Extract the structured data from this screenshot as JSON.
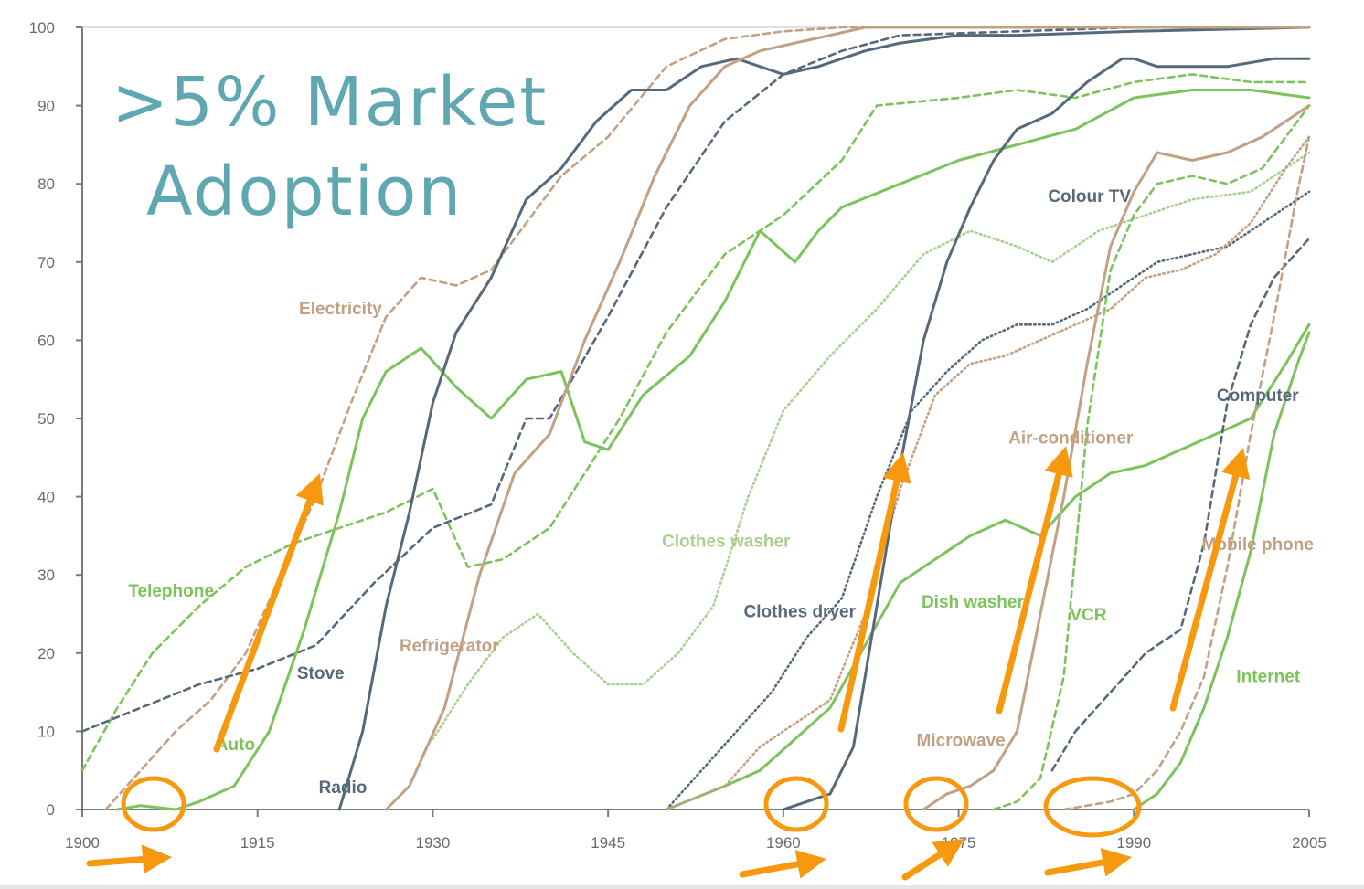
{
  "overlay": {
    "line1": ">5% Market",
    "line2": "Adoption"
  },
  "colors": {
    "grey": "#56697a",
    "tan": "#c2a083",
    "green": "#7cc35c",
    "lightgreen": "#a9d08d",
    "orange": "#f7990f",
    "overlay": "#5fa7b1"
  },
  "chart_data": {
    "type": "line",
    "xlim": [
      1900,
      2005
    ],
    "ylim": [
      0,
      100
    ],
    "xticks": [
      1900,
      1915,
      1930,
      1945,
      1960,
      1975,
      1990,
      2005
    ],
    "yticks": [
      0,
      10,
      20,
      30,
      40,
      50,
      60,
      70,
      80,
      90,
      100
    ],
    "grid": false,
    "series": [
      {
        "name": "Electricity",
        "color": "tan",
        "style": "dashed",
        "x": [
          1902,
          1905,
          1908,
          1911,
          1914,
          1917,
          1920,
          1923,
          1926,
          1929,
          1932,
          1935,
          1938,
          1941,
          1945,
          1950,
          1955,
          1960,
          1965,
          1980,
          2005
        ],
        "y": [
          0,
          5,
          10,
          14,
          20,
          30,
          40,
          52,
          63,
          68,
          67,
          69,
          75,
          81,
          86,
          95,
          98.5,
          99.5,
          100,
          100,
          100
        ]
      },
      {
        "name": "Telephone",
        "color": "green",
        "style": "dashed",
        "x": [
          1900,
          1903,
          1906,
          1910,
          1914,
          1918,
          1922,
          1926,
          1930,
          1933,
          1936,
          1940,
          1943,
          1946,
          1950,
          1955,
          1960,
          1965,
          1968,
          1975,
          1980,
          1985,
          1990,
          1995,
          2000,
          2005
        ],
        "y": [
          5,
          13,
          20,
          26,
          31,
          34,
          36,
          38,
          41,
          31,
          32,
          36,
          43,
          50,
          61,
          71,
          76,
          83,
          90,
          91,
          92,
          91,
          93,
          94,
          93,
          93
        ]
      },
      {
        "name": "Stove",
        "color": "grey",
        "style": "dashed",
        "x": [
          1900,
          1905,
          1910,
          1915,
          1920,
          1925,
          1930,
          1935,
          1938,
          1940,
          1945,
          1950,
          1955,
          1960,
          1965,
          1970,
          1980,
          1990,
          2005
        ],
        "y": [
          10,
          13,
          16,
          18,
          21,
          29,
          36,
          39,
          50,
          50,
          63,
          77,
          88,
          94,
          97,
          99,
          99.5,
          100,
          100
        ]
      },
      {
        "name": "Auto",
        "color": "green",
        "style": "solid",
        "x": [
          1903,
          1905,
          1908,
          1910,
          1913,
          1916,
          1919,
          1922,
          1924,
          1926,
          1929,
          1932,
          1935,
          1938,
          1941,
          1943,
          1945,
          1948,
          1952,
          1955,
          1958,
          1961,
          1963,
          1965,
          1970,
          1975,
          1980,
          1985,
          1990,
          1995,
          2000,
          2005
        ],
        "y": [
          0,
          0.5,
          0,
          1,
          3,
          10,
          23,
          38,
          50,
          56,
          59,
          54,
          50,
          55,
          56,
          47,
          46,
          53,
          58,
          65,
          74,
          70,
          74,
          77,
          80,
          83,
          85,
          87,
          91,
          92,
          92,
          91
        ]
      },
      {
        "name": "Radio",
        "color": "grey",
        "style": "solid",
        "x": [
          1922,
          1924,
          1926,
          1928,
          1930,
          1932,
          1935,
          1938,
          1941,
          1944,
          1947,
          1950,
          1953,
          1956,
          1960,
          1963,
          1967,
          1970,
          1975,
          1980,
          1990,
          2005
        ],
        "y": [
          0,
          10,
          26,
          38,
          52,
          61,
          68,
          78,
          82,
          88,
          92,
          92,
          95,
          96,
          94,
          95,
          97,
          98,
          99,
          99,
          99.5,
          100
        ]
      },
      {
        "name": "Refrigerator",
        "color": "tan",
        "style": "solid",
        "x": [
          1926,
          1928,
          1931,
          1934,
          1937,
          1940,
          1943,
          1946,
          1949,
          1952,
          1955,
          1958,
          1961,
          1964,
          1967,
          1970,
          1980,
          2005
        ],
        "y": [
          0,
          3,
          13,
          30,
          43,
          48,
          60,
          70,
          81,
          90,
          95,
          97,
          98,
          99,
          100,
          100,
          100,
          100
        ]
      },
      {
        "name": "Clothes washer",
        "color": "lightgreen",
        "style": "dotted",
        "x": [
          1930,
          1933,
          1936,
          1939,
          1942,
          1945,
          1948,
          1951,
          1954,
          1957,
          1960,
          1964,
          1968,
          1972,
          1976,
          1980,
          1983,
          1987,
          1991,
          1995,
          2000,
          2005
        ],
        "y": [
          9,
          16,
          22,
          25,
          20,
          16,
          16,
          20,
          26,
          40,
          51,
          58,
          64,
          71,
          74,
          72,
          70,
          74,
          76,
          78,
          79,
          84
        ]
      },
      {
        "name": "Clothes dryer",
        "color": "grey",
        "style": "dotted",
        "x": [
          1950,
          1953,
          1956,
          1959,
          1962,
          1965,
          1968,
          1971,
          1974,
          1977,
          1980,
          1983,
          1986,
          1989,
          1992,
          1995,
          1998,
          2002,
          2005
        ],
        "y": [
          0,
          5,
          10,
          15,
          22,
          27,
          40,
          51,
          56,
          60,
          62,
          62,
          64,
          67,
          70,
          71,
          72,
          76,
          79
        ]
      },
      {
        "name": "Dish washer",
        "color": "green",
        "style": "solid",
        "x": [
          1950,
          1955,
          1958,
          1961,
          1964,
          1967,
          1970,
          1973,
          1976,
          1979,
          1982,
          1985,
          1988,
          1991,
          1994,
          1997,
          2000,
          2003,
          2005
        ],
        "y": [
          0,
          3,
          5,
          9,
          13,
          21,
          29,
          32,
          35,
          37,
          35,
          40,
          43,
          44,
          46,
          48,
          50,
          57,
          62
        ]
      },
      {
        "name": "Air-conditioner",
        "color": "tan",
        "style": "dotted",
        "x": [
          1950,
          1955,
          1958,
          1961,
          1964,
          1967,
          1970,
          1973,
          1976,
          1979,
          1982,
          1985,
          1988,
          1991,
          1994,
          1997,
          2000,
          2003,
          2005
        ],
        "y": [
          0,
          3,
          8,
          11,
          14,
          25,
          41,
          53,
          57,
          58,
          60,
          62,
          64,
          68,
          69,
          71,
          75,
          82,
          86
        ]
      },
      {
        "name": "Colour TV",
        "color": "grey",
        "style": "solid",
        "x": [
          1960,
          1962,
          1964,
          1966,
          1968,
          1970,
          1972,
          1974,
          1976,
          1978,
          1980,
          1983,
          1986,
          1989,
          1990,
          1992,
          1995,
          1998,
          2002,
          2005
        ],
        "y": [
          0,
          1,
          2,
          8,
          26,
          44,
          60,
          70,
          77,
          83,
          87,
          89,
          93,
          96,
          96,
          95,
          95,
          95,
          96,
          96
        ]
      },
      {
        "name": "Microwave",
        "color": "tan",
        "style": "solid",
        "x": [
          1972,
          1974,
          1976,
          1978,
          1980,
          1982,
          1984,
          1986,
          1988,
          1990,
          1992,
          1995,
          1998,
          2001,
          2005
        ],
        "y": [
          0,
          2,
          3,
          5,
          10,
          25,
          40,
          57,
          72,
          79,
          84,
          83,
          84,
          86,
          90
        ]
      },
      {
        "name": "VCR",
        "color": "green",
        "style": "dashed",
        "x": [
          1978,
          1980,
          1982,
          1984,
          1986,
          1988,
          1990,
          1992,
          1995,
          1998,
          2001,
          2005
        ],
        "y": [
          0,
          1,
          4,
          17,
          49,
          69,
          76,
          80,
          81,
          80,
          82,
          90
        ]
      },
      {
        "name": "Computer",
        "color": "grey",
        "style": "dashed",
        "x": [
          1983,
          1985,
          1988,
          1991,
          1994,
          1996,
          1998,
          2000,
          2002,
          2005
        ],
        "y": [
          5,
          10,
          15,
          20,
          23,
          34,
          52,
          62,
          68,
          73
        ]
      },
      {
        "name": "Mobile phone",
        "color": "tan",
        "style": "dashed",
        "x": [
          1984,
          1986,
          1988,
          1990,
          1992,
          1994,
          1996,
          1998,
          2000,
          2002,
          2004,
          2005
        ],
        "y": [
          0,
          0.5,
          1,
          2,
          5,
          10,
          17,
          31,
          48,
          63,
          79,
          86
        ]
      },
      {
        "name": "Internet",
        "color": "green",
        "style": "solid",
        "x": [
          1990,
          1992,
          1994,
          1996,
          1998,
          2000,
          2002,
          2004,
          2005
        ],
        "y": [
          0,
          2,
          6,
          13,
          22,
          33,
          48,
          57,
          61
        ]
      }
    ],
    "labels": [
      {
        "text": "Electricity",
        "x": 1922.1,
        "y": 63.3,
        "color": "tan"
      },
      {
        "text": "Telephone",
        "x": 1907.6,
        "y": 27.2,
        "color": "green"
      },
      {
        "text": "Stove",
        "x": 1920.4,
        "y": 16.7,
        "color": "grey"
      },
      {
        "text": "Auto",
        "x": 1913.1,
        "y": 7.6,
        "color": "green"
      },
      {
        "text": "Radio",
        "x": 1922.3,
        "y": 2.1,
        "color": "grey"
      },
      {
        "text": "Refrigerator",
        "x": 1931.4,
        "y": 20.2,
        "color": "tan"
      },
      {
        "text": "Clothes washer",
        "x": 1955.1,
        "y": 33.6,
        "color": "lightgreen"
      },
      {
        "text": "Clothes dryer",
        "x": 1961.4,
        "y": 24.6,
        "color": "grey"
      },
      {
        "text": "Dish washer",
        "x": 1976.2,
        "y": 25.8,
        "color": "green"
      },
      {
        "text": "Colour TV",
        "x": 1986.2,
        "y": 77.7,
        "color": "grey"
      },
      {
        "text": "Air-conditioner",
        "x": 1984.6,
        "y": 46.8,
        "color": "tan"
      },
      {
        "text": "Microwave",
        "x": 1975.2,
        "y": 8.1,
        "color": "tan"
      },
      {
        "text": "VCR",
        "x": 1986.1,
        "y": 24.2,
        "color": "green"
      },
      {
        "text": "Computer",
        "x": 2000.6,
        "y": 52.2,
        "color": "grey"
      },
      {
        "text": "Mobile phone",
        "x": 2000.6,
        "y": 33.2,
        "color": "tan"
      },
      {
        "text": "Internet",
        "x": 2001.5,
        "y": 16.3,
        "color": "green"
      }
    ]
  }
}
